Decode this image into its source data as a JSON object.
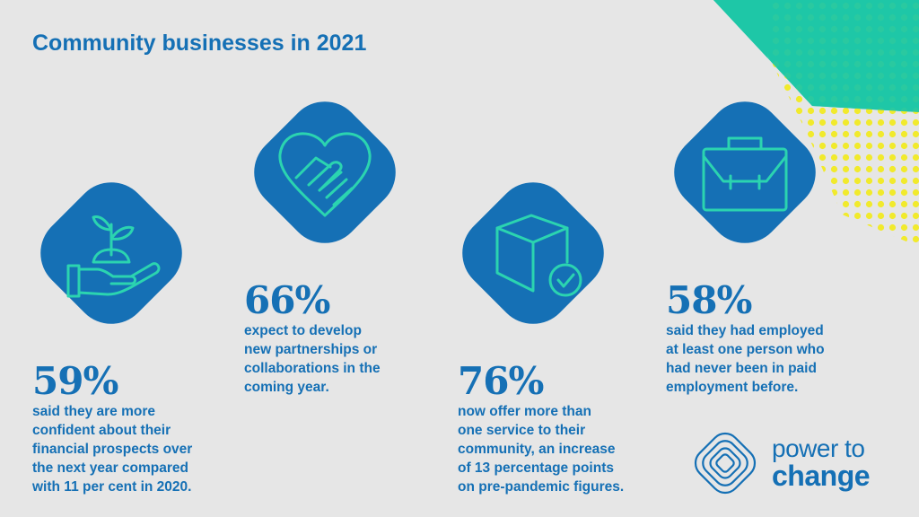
{
  "title": "Community businesses in 2021",
  "stats": [
    {
      "value": "59%",
      "description": "said they are more\nconfident about their\nfinancial prospects over\nthe next year compared\nwith 11 per cent in 2020.",
      "icon": "hand-plant-icon"
    },
    {
      "value": "66%",
      "description": "expect to develop\nnew partnerships or\ncollaborations in the\ncoming year.",
      "icon": "handshake-heart-icon"
    },
    {
      "value": "76%",
      "description": "now offer more than\none service to their\ncommunity, an increase\nof 13 percentage points\non pre-pandemic figures.",
      "icon": "box-check-icon"
    },
    {
      "value": "58%",
      "description": "said they had employed\nat least one person who\nhad never been in paid\nemployment before.",
      "icon": "briefcase-icon"
    }
  ],
  "logo": {
    "line1": "power to",
    "line2": "change"
  },
  "colors": {
    "primary": "#1570b5",
    "accent": "#2bd4b0",
    "teal": "#1fc7a6",
    "dots": "#f1ea2c",
    "background": "#e6e6e6"
  }
}
